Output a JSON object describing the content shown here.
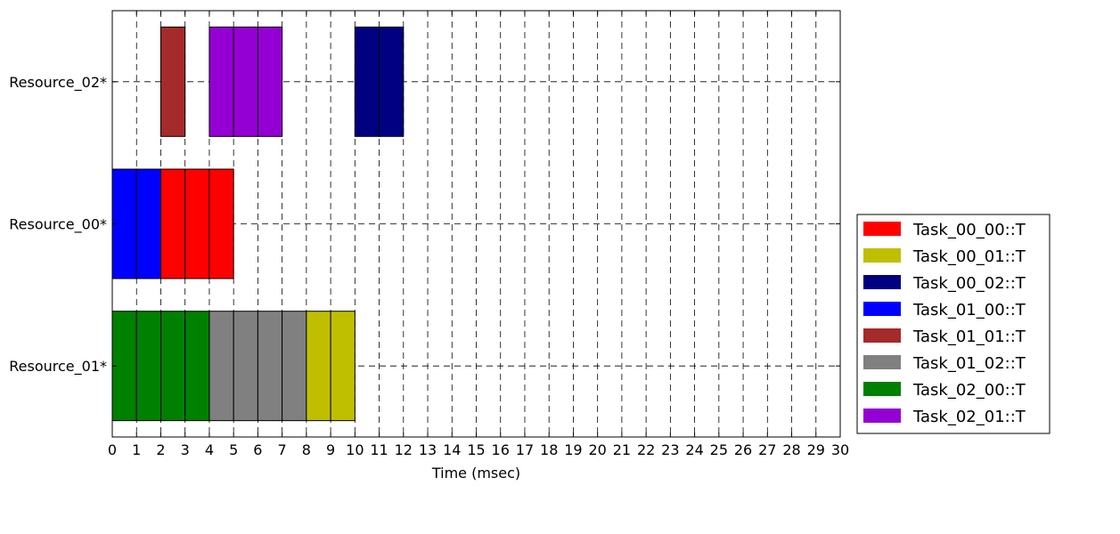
{
  "chart_data": {
    "type": "gantt",
    "title": "",
    "xlabel": "Time (msec)",
    "ylabel": "",
    "xlim": [
      0,
      30
    ],
    "x_ticks": [
      0,
      1,
      2,
      3,
      4,
      5,
      6,
      7,
      8,
      9,
      10,
      11,
      12,
      13,
      14,
      15,
      16,
      17,
      18,
      19,
      20,
      21,
      22,
      23,
      24,
      25,
      26,
      27,
      28,
      29,
      30
    ],
    "grid": true,
    "legend_position": "right",
    "resources": [
      "Resource_02*",
      "Resource_00*",
      "Resource_01*"
    ],
    "tasks": [
      {
        "name": "Task_00_00::T",
        "color": "#ff0000"
      },
      {
        "name": "Task_00_01::T",
        "color": "#bfbf00"
      },
      {
        "name": "Task_00_02::T",
        "color": "#000080"
      },
      {
        "name": "Task_01_00::T",
        "color": "#0000ff"
      },
      {
        "name": "Task_01_01::T",
        "color": "#a52a2a"
      },
      {
        "name": "Task_01_02::T",
        "color": "#808080"
      },
      {
        "name": "Task_02_00::T",
        "color": "#008000"
      },
      {
        "name": "Task_02_01::T",
        "color": "#9400d3"
      }
    ],
    "segments": [
      {
        "resource": "Resource_02*",
        "task": "Task_01_01::T",
        "start": 2,
        "end": 3
      },
      {
        "resource": "Resource_02*",
        "task": "Task_02_01::T",
        "start": 4,
        "end": 5
      },
      {
        "resource": "Resource_02*",
        "task": "Task_02_01::T",
        "start": 5,
        "end": 6
      },
      {
        "resource": "Resource_02*",
        "task": "Task_02_01::T",
        "start": 6,
        "end": 7
      },
      {
        "resource": "Resource_02*",
        "task": "Task_00_02::T",
        "start": 10,
        "end": 11
      },
      {
        "resource": "Resource_02*",
        "task": "Task_00_02::T",
        "start": 11,
        "end": 12
      },
      {
        "resource": "Resource_00*",
        "task": "Task_01_00::T",
        "start": 0,
        "end": 1
      },
      {
        "resource": "Resource_00*",
        "task": "Task_01_00::T",
        "start": 1,
        "end": 2
      },
      {
        "resource": "Resource_00*",
        "task": "Task_00_00::T",
        "start": 2,
        "end": 3
      },
      {
        "resource": "Resource_00*",
        "task": "Task_00_00::T",
        "start": 3,
        "end": 4
      },
      {
        "resource": "Resource_00*",
        "task": "Task_00_00::T",
        "start": 4,
        "end": 5
      },
      {
        "resource": "Resource_01*",
        "task": "Task_02_00::T",
        "start": 0,
        "end": 1
      },
      {
        "resource": "Resource_01*",
        "task": "Task_02_00::T",
        "start": 1,
        "end": 2
      },
      {
        "resource": "Resource_01*",
        "task": "Task_02_00::T",
        "start": 2,
        "end": 3
      },
      {
        "resource": "Resource_01*",
        "task": "Task_02_00::T",
        "start": 3,
        "end": 4
      },
      {
        "resource": "Resource_01*",
        "task": "Task_01_02::T",
        "start": 4,
        "end": 5
      },
      {
        "resource": "Resource_01*",
        "task": "Task_01_02::T",
        "start": 5,
        "end": 6
      },
      {
        "resource": "Resource_01*",
        "task": "Task_01_02::T",
        "start": 6,
        "end": 7
      },
      {
        "resource": "Resource_01*",
        "task": "Task_01_02::T",
        "start": 7,
        "end": 8
      },
      {
        "resource": "Resource_01*",
        "task": "Task_00_01::T",
        "start": 8,
        "end": 9
      },
      {
        "resource": "Resource_01*",
        "task": "Task_00_01::T",
        "start": 9,
        "end": 10
      }
    ]
  }
}
